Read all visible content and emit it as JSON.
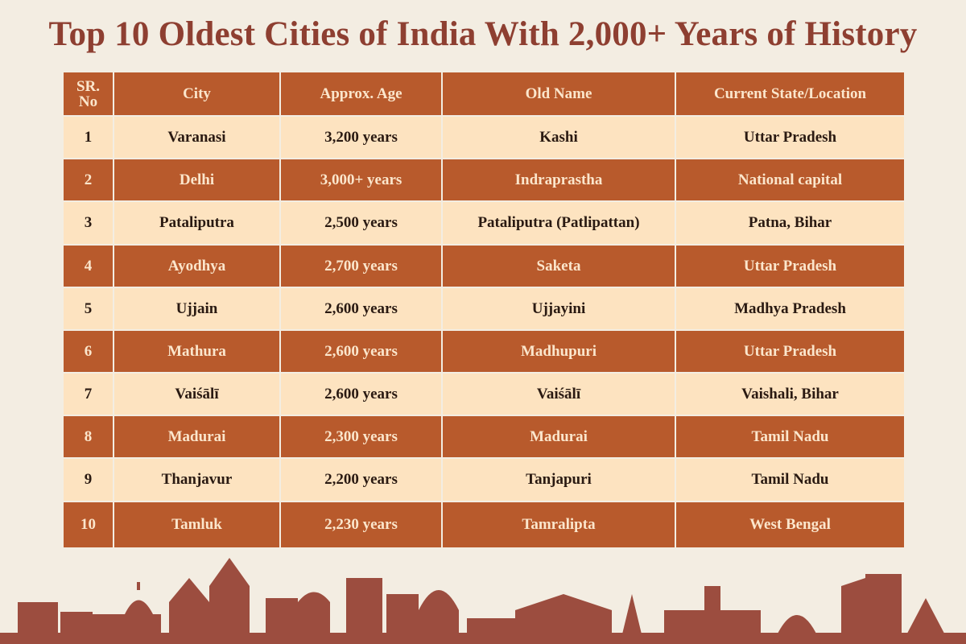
{
  "header": {
    "title": "Top 10 Oldest Cities of India With 2,000+ Years of History"
  },
  "table": {
    "columns": [
      "SR. No",
      "City",
      "Approx. Age",
      "Old Name",
      "Current State/Location"
    ],
    "rows": [
      [
        "1",
        "Varanasi",
        "3,200 years",
        "Kashi",
        "Uttar Pradesh"
      ],
      [
        "2",
        "Delhi",
        "3,000+ years",
        "Indraprastha",
        "National capital"
      ],
      [
        "3",
        "Pataliputra",
        "2,500 years",
        "Pataliputra (Patlipattan)",
        "Patna, Bihar"
      ],
      [
        "4",
        "Ayodhya",
        "2,700 years",
        "Saketa",
        "Uttar Pradesh"
      ],
      [
        "5",
        "Ujjain",
        "2,600 years",
        "Ujjayini",
        "Madhya Pradesh"
      ],
      [
        "6",
        "Mathura",
        "2,600 years",
        "Madhupuri",
        "Uttar Pradesh"
      ],
      [
        "7",
        "Vaiśālī",
        "2,600 years",
        "Vaiśālī",
        "Vaishali, Bihar"
      ],
      [
        "8",
        "Madurai",
        "2,300 years",
        "Madurai",
        "Tamil Nadu"
      ],
      [
        "9",
        "Thanjavur",
        "2,200 years",
        "Tanjapuri",
        "Tamil Nadu"
      ],
      [
        "10",
        "Tamluk",
        "2,230 years",
        "Tamralipta",
        "West Bengal"
      ]
    ]
  }
}
